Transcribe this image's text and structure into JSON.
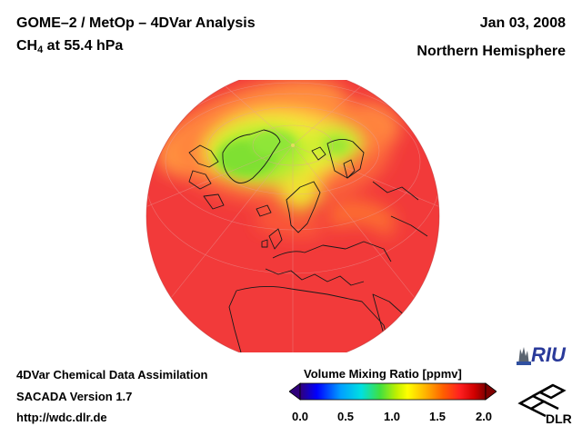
{
  "header": {
    "title_line1": "GOME–2 / MetOp – 4DVar Analysis",
    "species_main": "CH",
    "species_sub": "4",
    "species_rest": " at 55.4 hPa",
    "date": "Jan 03, 2008",
    "region": "Northern Hemisphere"
  },
  "footer": {
    "line1": "4DVar Chemical Data Assimilation",
    "line2": "SACADA Version 1.7",
    "line3": "http://wdc.dlr.de"
  },
  "colorbar": {
    "title": "Volume Mixing Ratio [ppmv]",
    "ticks": [
      "0.0",
      "0.5",
      "1.0",
      "1.5",
      "2.0"
    ],
    "range": [
      0.0,
      2.0
    ],
    "colors": [
      "#30007a",
      "#0000ff",
      "#00a0ff",
      "#00e0e0",
      "#40e040",
      "#c0f000",
      "#ffff00",
      "#ffb000",
      "#ff6000",
      "#ff2020",
      "#d00000",
      "#800000"
    ]
  },
  "logos": {
    "riu": "RIU",
    "dlr": "DLR"
  },
  "map": {
    "projection": "orthographic",
    "hemisphere": "north",
    "dominant_color": "#f23a3a"
  }
}
